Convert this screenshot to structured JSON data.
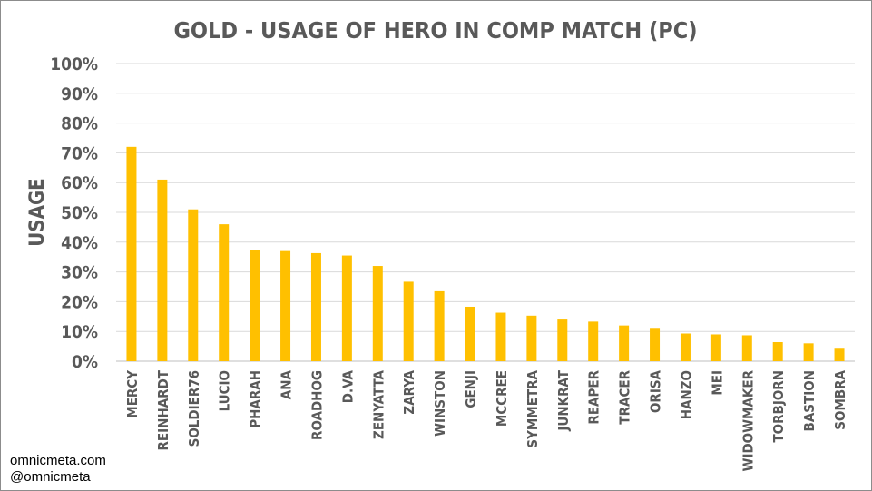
{
  "chart_data": {
    "type": "bar",
    "title": "GOLD - USAGE OF HERO IN COMP MATCH (PC)",
    "xlabel": "",
    "ylabel": "USAGE",
    "ylim": [
      0,
      100
    ],
    "yticks": [
      "0%",
      "10%",
      "20%",
      "30%",
      "40%",
      "50%",
      "60%",
      "70%",
      "80%",
      "90%",
      "100%"
    ],
    "grid": true,
    "bar_color": "#FFC000",
    "categories": [
      "MERCY",
      "REINHARDT",
      "SOLDIER76",
      "LUCIO",
      "PHARAH",
      "ANA",
      "ROADHOG",
      "D.VA",
      "ZENYATTA",
      "ZARYA",
      "WINSTON",
      "GENJI",
      "MCCREE",
      "SYMMETRA",
      "JUNKRAT",
      "REAPER",
      "TRACER",
      "ORISA",
      "HANZO",
      "MEI",
      "WIDOWMAKER",
      "TORBJORN",
      "BASTION",
      "SOMBRA"
    ],
    "values": [
      72,
      61,
      51,
      46,
      37.5,
      37,
      36.3,
      35.5,
      32,
      26.7,
      23.5,
      18.3,
      16.3,
      15.3,
      14,
      13.3,
      12,
      11.2,
      9.3,
      9,
      8.7,
      6.4,
      6,
      4.5
    ]
  },
  "credits": {
    "line1": "omnicmeta.com",
    "line2": "@omnicmeta"
  }
}
